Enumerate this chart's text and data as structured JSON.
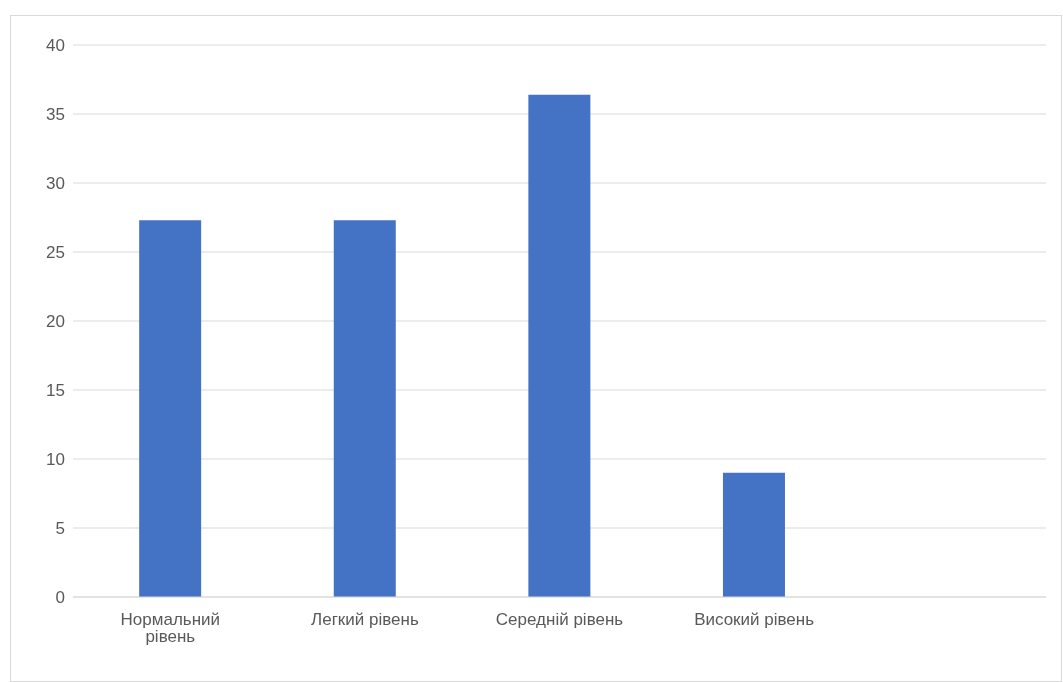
{
  "chart_data": {
    "type": "bar",
    "categories": [
      "Нормальний рівень",
      "Легкий рівень",
      "Середній рівень",
      "Високий рівень",
      null
    ],
    "values": [
      27.3,
      27.3,
      36.4,
      9,
      null
    ],
    "color": "#4472c4",
    "ylim": [
      0,
      40
    ],
    "yticks": [
      0,
      5,
      10,
      15,
      20,
      25,
      30,
      35,
      40
    ],
    "grid": "y"
  }
}
